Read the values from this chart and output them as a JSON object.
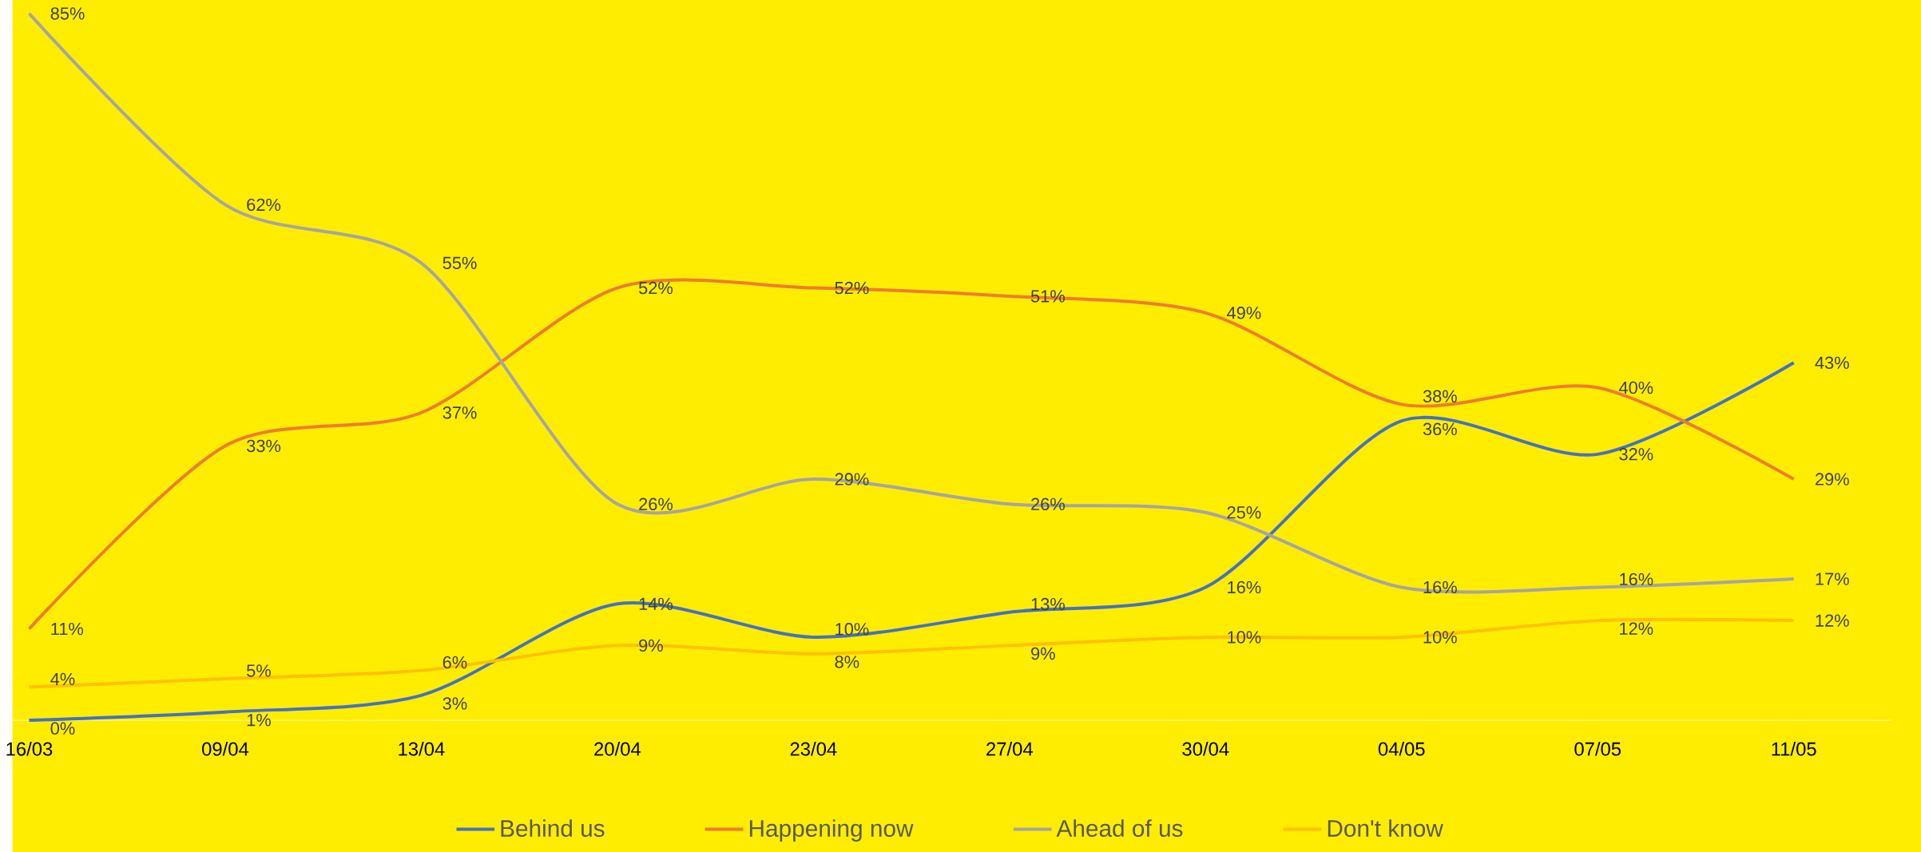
{
  "chart_data": {
    "type": "line",
    "categories": [
      "16/03",
      "09/04",
      "13/04",
      "20/04",
      "23/04",
      "27/04",
      "30/04",
      "04/05",
      "07/05",
      "11/05"
    ],
    "series": [
      {
        "name": "Behind us",
        "color": "#4472c4",
        "values": [
          0,
          1,
          3,
          14,
          10,
          13,
          16,
          36,
          32,
          43
        ],
        "value_labels": [
          "0%",
          "1%",
          "3%",
          "14%",
          "10%",
          "13%",
          "16%",
          "36%",
          "32%",
          "43%"
        ]
      },
      {
        "name": "Happening now",
        "color": "#ed7d31",
        "values": [
          11,
          33,
          37,
          52,
          52,
          51,
          49,
          38,
          40,
          29
        ],
        "value_labels": [
          "11%",
          "33%",
          "37%",
          "52%",
          "52%",
          "51%",
          "49%",
          "38%",
          "40%",
          "29%"
        ]
      },
      {
        "name": "Ahead of us",
        "color": "#a5a5a5",
        "values": [
          85,
          62,
          55,
          26,
          29,
          26,
          25,
          16,
          16,
          17
        ],
        "value_labels": [
          "85%",
          "62%",
          "55%",
          "26%",
          "29%",
          "26%",
          "25%",
          "16%",
          "16%",
          "17%"
        ]
      },
      {
        "name": "Don't know",
        "color": "#ffc000",
        "values": [
          4,
          5,
          6,
          9,
          8,
          9,
          10,
          10,
          12,
          12
        ],
        "value_labels": [
          "4%",
          "5%",
          "6%",
          "9%",
          "8%",
          "9%",
          "10%",
          "10%",
          "12%",
          "12%"
        ]
      }
    ],
    "legend": "bottom",
    "marker": "none",
    "line_style": "solid"
  }
}
